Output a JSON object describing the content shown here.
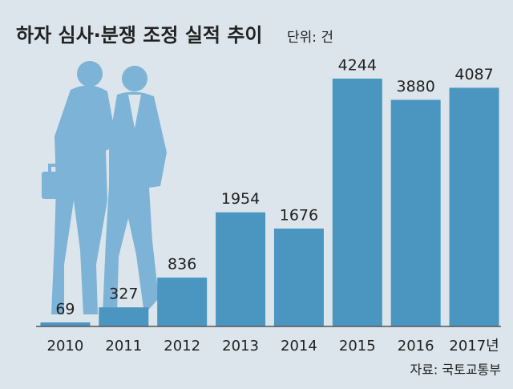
{
  "chart_data": {
    "type": "bar",
    "title": "하자 심사·분쟁 조정 실적 추이",
    "subtitle": "단위: 건",
    "source": "자료: 국토교통부",
    "categories": [
      "2010",
      "2011",
      "2012",
      "2013",
      "2014",
      "2015",
      "2016",
      "2017년"
    ],
    "values": [
      69,
      327,
      836,
      1954,
      1676,
      4244,
      3880,
      4087
    ],
    "color": "#4b96c0"
  }
}
